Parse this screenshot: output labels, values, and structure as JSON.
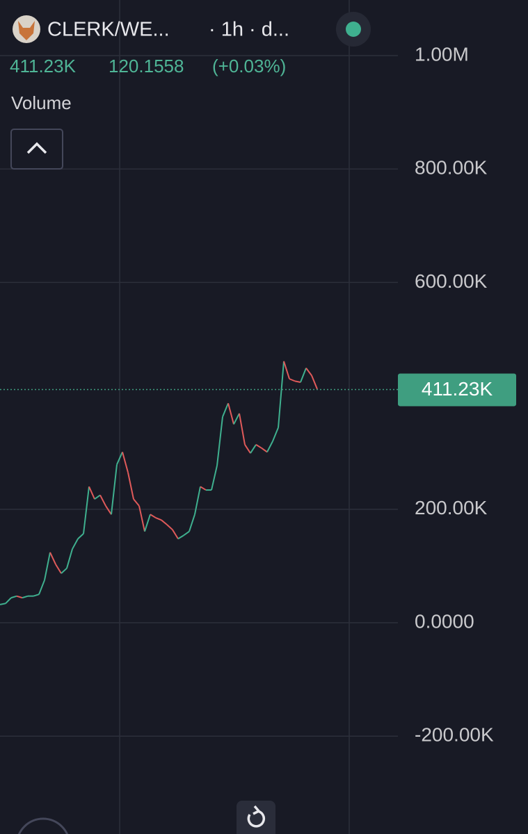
{
  "header": {
    "pair": "CLERK/WE...",
    "interval": "· 1h · d...",
    "volume_text": "411.23K",
    "price": "120.1558",
    "change": "(+0.03%)",
    "indicator": "Volume"
  },
  "chart_data": {
    "type": "line",
    "series": [
      {
        "name": "CLERK/WETH",
        "values": [
          32000,
          34000,
          44000,
          47000,
          44000,
          47000,
          47000,
          50000,
          75000,
          124000,
          103000,
          87000,
          96000,
          130000,
          148000,
          157000,
          240000,
          218000,
          225000,
          206000,
          191000,
          279000,
          301000,
          265000,
          218000,
          206000,
          161000,
          191000,
          185000,
          181000,
          173000,
          164000,
          148000,
          154000,
          161000,
          191000,
          240000,
          234000,
          234000,
          277000,
          363000,
          387000,
          350000,
          369000,
          314000,
          299000,
          314000,
          308000,
          301000,
          320000,
          344000,
          461000,
          430000,
          426000,
          424000,
          449000,
          436000,
          412000
        ]
      }
    ],
    "up_color": "#3fb08f",
    "down_color": "#e05a5a",
    "ylim": [
      -372500,
      1098000
    ],
    "yticks": [
      {
        "value": 1000000,
        "label": "1.00M"
      },
      {
        "value": 800000,
        "label": "800.00K"
      },
      {
        "value": 600000,
        "label": "600.00K"
      },
      {
        "value": 200000,
        "label": "200.00K"
      },
      {
        "value": 0,
        "label": "0.0000"
      },
      {
        "value": -200000,
        "label": "-200.00K"
      }
    ],
    "last_price": {
      "value": 411230,
      "label": "411.23K"
    },
    "last_price_color": "#3f9e80",
    "grid": true
  }
}
